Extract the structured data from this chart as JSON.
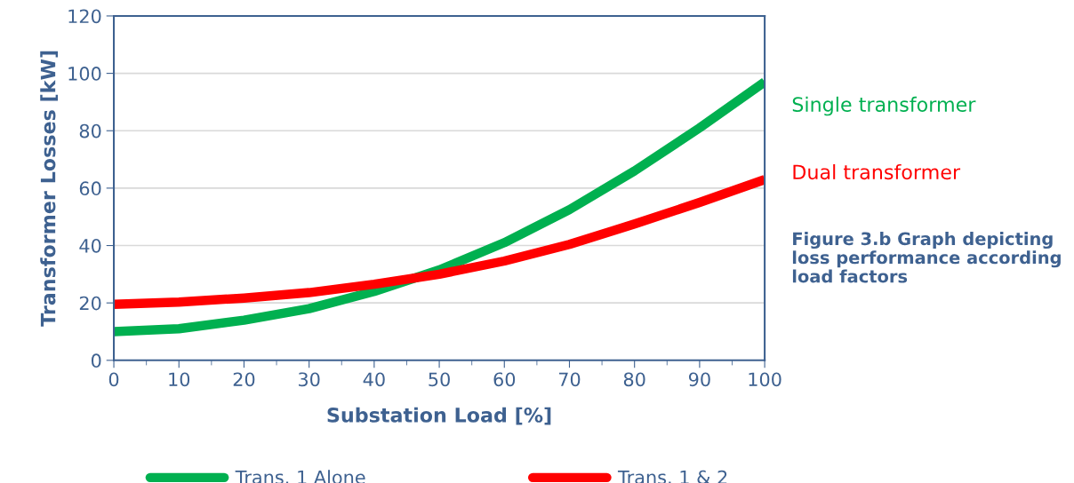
{
  "chart_data": {
    "type": "line",
    "xlabel": "Substation Load [%]",
    "ylabel": "Transformer Losses [kW]",
    "x": [
      0,
      10,
      20,
      30,
      40,
      50,
      60,
      70,
      80,
      90,
      100
    ],
    "series": [
      {
        "name": "Trans. 1 Alone",
        "color": "#00b050",
        "values": [
          10,
          11,
          14,
          18,
          24,
          31.5,
          41,
          52.5,
          66,
          81,
          97
        ]
      },
      {
        "name": "Trans. 1 & 2",
        "color": "#ff0000",
        "values": [
          19.5,
          20.3,
          21.7,
          23.6,
          26.5,
          30,
          34.6,
          40.4,
          47.5,
          55,
          63
        ]
      }
    ],
    "xlim": [
      0,
      100
    ],
    "xticks": [
      0,
      10,
      20,
      30,
      40,
      50,
      60,
      70,
      80,
      90,
      100
    ],
    "ylim": [
      0,
      120
    ],
    "yticks": [
      0,
      20,
      40,
      60,
      80,
      100,
      120
    ],
    "grid": "y",
    "legend": "bottom",
    "marker": "none",
    "line_style": "solid",
    "annotations": [
      "Single transformer",
      "Dual transformer",
      "Figure 3.b Graph depicting loss performance according load factors"
    ]
  }
}
